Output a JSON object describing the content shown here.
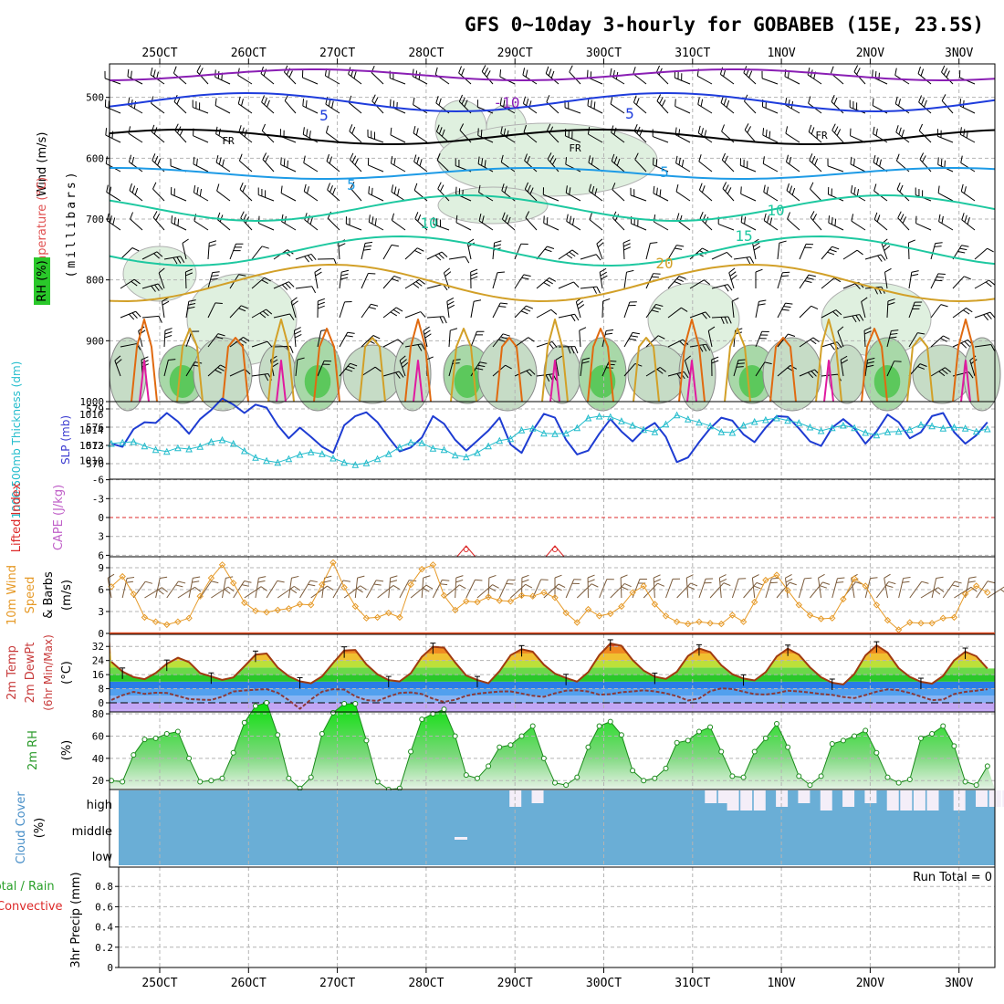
{
  "chart_data": {
    "type": "meteogram",
    "title": "GFS 0~10day 3-hourly for GOBABEB (15E, 23.5S)",
    "time_labels": [
      "25OCT",
      "26OCT",
      "27OCT",
      "28OCT",
      "29OCT",
      "30OCT",
      "31OCT",
      "1NOV",
      "2NOV",
      "3NOV"
    ],
    "colors": {
      "grid": "#b4b4b4",
      "axis": "#000000",
      "temp_500": "#8a1fb4",
      "temp_lo": "#1e3cdc",
      "temp_fr": "#000000",
      "temp_5": "#1e9be6",
      "temp_10": "#1ec8a0",
      "temp_20": "#d2a028",
      "temp_hot": "#e06a10",
      "temp_max": "#e01aa0",
      "slp": "#1e3cd2",
      "thickness": "#22bccc",
      "li": "#dc2828",
      "wind10": "#e69a28",
      "cloud": "#6aaed6",
      "rh_fill": "#2ac82a"
    },
    "upper_panel": {
      "y_axis_label_1": "Wind (m/s)",
      "y_axis_label_2": "Temperature (°C)",
      "y_axis_label_3": "RH (%)",
      "y_axis_label_4": "(millibars)",
      "y_ticks": [
        500,
        600,
        700,
        800,
        900,
        1000
      ],
      "contour_labels": [
        "-10",
        "5",
        "FR",
        "FR",
        "FR",
        "5",
        "5",
        "10",
        "10",
        "15",
        "20",
        "5"
      ]
    },
    "slp_panel": {
      "left_axis_label": "1000-500mb Thickness (dm)",
      "right_axis_label": "SLP (mb)",
      "left_ticks": [
        579,
        576,
        573,
        570
      ],
      "right_ticks": [
        1016,
        1014,
        1012,
        1010
      ],
      "series": [
        {
          "name": "SLP",
          "units": "mb",
          "values": [
            1012.2,
            1011.8,
            1014.1,
            1015.0,
            1014.9,
            1016.2,
            1015.1,
            1013.5,
            1015.4,
            1016.6,
            1018.1,
            1017.3,
            1016.2,
            1017.3,
            1016.9,
            1014.6,
            1012.9,
            1014.3,
            1013.1,
            1011.8,
            1011.0,
            1014.6,
            1015.8,
            1016.3,
            1015.0,
            1013.0,
            1011.2,
            1011.7,
            1013.0,
            1015.8,
            1014.8,
            1012.7,
            1011.3,
            1012.6,
            1013.9,
            1015.6,
            1012.1,
            1011.0,
            1013.9,
            1016.1,
            1015.6,
            1012.7,
            1010.8,
            1011.3,
            1013.5,
            1015.4,
            1013.8,
            1012.5,
            1014.0,
            1014.9,
            1013.1,
            1009.8,
            1010.4,
            1012.4,
            1014.2,
            1015.6,
            1015.2,
            1013.4,
            1012.4,
            1014.3,
            1015.8,
            1015.7,
            1014.2,
            1012.5,
            1011.9,
            1014.3,
            1015.4,
            1014.2,
            1012.2,
            1013.8,
            1016.0,
            1015.0,
            1012.9,
            1013.7,
            1015.8,
            1016.2,
            1013.7,
            1012.2,
            1013.3,
            1015.0
          ]
        },
        {
          "name": "1000-500mb thickness",
          "units": "dm",
          "values": [
            573.3,
            573.5,
            573.6,
            572.9,
            572.3,
            572.0,
            572.6,
            572.4,
            572.8,
            573.6,
            573.9,
            573.3,
            572.1,
            571.0,
            570.5,
            570.2,
            570.8,
            571.5,
            571.9,
            571.6,
            570.9,
            570.2,
            569.8,
            570.1,
            570.8,
            571.6,
            572.7,
            573.5,
            573.4,
            572.5,
            572.3,
            571.4,
            571.1,
            571.8,
            572.9,
            573.8,
            574.1,
            575.5,
            575.8,
            575.0,
            574.9,
            575.0,
            575.9,
            577.5,
            577.8,
            577.7,
            577.0,
            576.3,
            575.6,
            575.2,
            576.5,
            578.0,
            577.3,
            576.8,
            576.2,
            575.2,
            575.1,
            576.3,
            576.9,
            577.2,
            577.5,
            577.1,
            576.7,
            576.0,
            575.4,
            575.9,
            576.3,
            575.9,
            575.1,
            574.7,
            575.2,
            575.3,
            575.6,
            576.4,
            576.2,
            575.8,
            576.0,
            575.8,
            575.3,
            575.7
          ]
        }
      ]
    },
    "li_panel": {
      "left_axis_label_1": "Lifted Index",
      "left_axis_label_2": "CAPE (J/kg)",
      "ticks": [
        -6,
        -3,
        0,
        3,
        6
      ],
      "cape_points": [
        {
          "x": 28.45,
          "value": 0
        },
        {
          "x": 29.45,
          "value": 0
        }
      ]
    },
    "wind10_panel": {
      "left_axis_label_1": "10m Wind",
      "left_axis_label_2": "Speed",
      "left_axis_label_3": "& Barbs",
      "units_label": "(m/s)",
      "ticks": [
        0,
        3,
        6,
        9
      ],
      "values": [
        6.4,
        7.8,
        5.4,
        2.2,
        1.6,
        1.2,
        1.6,
        2.1,
        5.1,
        7.6,
        9.4,
        6.9,
        4.2,
        3.1,
        2.9,
        3.2,
        3.4,
        4.0,
        3.9,
        6.7,
        9.7,
        6.3,
        3.7,
        2.1,
        2.2,
        2.8,
        2.2,
        6.7,
        8.8,
        9.4,
        5.2,
        3.2,
        4.4,
        4.3,
        5.0,
        4.5,
        4.4,
        5.2,
        5.1,
        5.6,
        4.9,
        2.8,
        1.5,
        3.3,
        2.4,
        2.7,
        3.7,
        5.6,
        6.5,
        4.0,
        2.4,
        1.6,
        1.3,
        1.6,
        1.4,
        1.3,
        2.5,
        1.6,
        4.3,
        7.3,
        8.0,
        5.9,
        3.9,
        2.5,
        2.0,
        2.1,
        4.7,
        7.5,
        6.5,
        3.9,
        1.8,
        0.5,
        1.5,
        1.4,
        1.4,
        2.1,
        2.2,
        5.4,
        6.5,
        5.6
      ]
    },
    "temp_panel": {
      "left_axis_label_1": "2m Temp",
      "left_axis_label_2": "2m DewPt",
      "left_axis_label_3": "(6hr Min/Max)",
      "units_label": "(°C)",
      "ticks": [
        0,
        8,
        16,
        24,
        32
      ],
      "temperature": [
        23.3,
        17.7,
        14.6,
        13.4,
        16.9,
        22.2,
        25.6,
        23.1,
        16.9,
        14.9,
        13.0,
        14.4,
        20.7,
        27.3,
        28.0,
        20.0,
        15.1,
        12.2,
        11.1,
        15.0,
        22.6,
        29.7,
        30.0,
        21.8,
        16.1,
        12.9,
        12.1,
        16.8,
        26.1,
        31.8,
        31.3,
        22.9,
        15.5,
        12.9,
        11.1,
        18.0,
        27.0,
        30.4,
        29.0,
        21.6,
        16.6,
        14.1,
        12.0,
        17.4,
        27.1,
        33.7,
        32.4,
        24.3,
        18.3,
        14.8,
        13.6,
        17.6,
        26.6,
        30.9,
        28.8,
        21.3,
        16.2,
        13.8,
        12.7,
        17.4,
        26.3,
        30.7,
        27.3,
        20.1,
        14.5,
        11.4,
        10.4,
        16.4,
        26.9,
        32.6,
        28.5,
        19.7,
        14.7,
        11.9,
        10.9,
        15.3,
        24.1,
        29.0,
        26.4,
        19.5
      ],
      "dewpoint": [
        1.6,
        4.3,
        6.2,
        5.1,
        5.7,
        5.6,
        3.9,
        2.1,
        1.8,
        1.6,
        3.5,
        6.4,
        7.0,
        7.4,
        7.7,
        5.7,
        1.5,
        -3.4,
        1.9,
        6.3,
        7.7,
        7.5,
        3.7,
        1.5,
        1.1,
        3.6,
        5.6,
        5.9,
        5.0,
        2.3,
        0.5,
        1.7,
        4.0,
        5.2,
        5.8,
        6.4,
        6.5,
        5.3,
        4.0,
        3.4,
        5.4,
        6.9,
        7.1,
        6.4,
        4.6,
        4.9,
        6.0,
        6.5,
        7.1,
        6.5,
        5.4,
        3.8,
        1.3,
        2.5,
        6.6,
        8.2,
        7.8,
        6.3,
        4.9,
        4.7,
        5.5,
        6.9,
        6.5,
        5.8,
        5.0,
        4.5,
        3.3,
        2.7,
        4.4,
        6.3,
        7.6,
        7.1,
        5.6,
        3.6,
        1.5,
        1.8,
        5.0,
        6.2,
        6.9,
        7.7
      ]
    },
    "rh_panel": {
      "left_axis_label": "2m RH",
      "units_label": "(%)",
      "ticks": [
        20,
        40,
        60,
        80
      ],
      "values": [
        20,
        19,
        43,
        57,
        58,
        62,
        64,
        40,
        19,
        20,
        22,
        45,
        72,
        87,
        90,
        61,
        22,
        13,
        23,
        62,
        81,
        89,
        89,
        56,
        19,
        12,
        13,
        46,
        75,
        80,
        84,
        60,
        25,
        22,
        33,
        50,
        52,
        60,
        69,
        40,
        18,
        16,
        23,
        50,
        69,
        73,
        61,
        29,
        20,
        22,
        31,
        54,
        56,
        64,
        68,
        46,
        24,
        23,
        46,
        58,
        71,
        50,
        24,
        16,
        24,
        53,
        56,
        60,
        65,
        45,
        23,
        18,
        21,
        58,
        62,
        69,
        51,
        19,
        16,
        33
      ]
    },
    "cloud_panel": {
      "left_axis_label_1": "Cloud Cover",
      "left_axis_label_2": "(%)",
      "layers": [
        "high",
        "middle",
        "low"
      ],
      "clear_high_x": [
        29.0,
        29.25,
        31.2,
        31.35,
        31.45,
        31.6,
        31.75,
        32.0,
        32.25,
        32.5,
        32.75,
        33.0,
        33.25,
        33.4,
        33.55,
        33.7,
        34.0,
        34.25,
        34.4,
        34.55,
        34.7,
        34.85,
        35.2,
        35.45,
        35.7,
        35.95
      ]
    },
    "precip_panel": {
      "left_axis_label_1": "Total / Rain",
      "left_axis_label_2": "Convective",
      "left_axis_label_3": "3hr Precip (mm)",
      "ticks": [
        0,
        0.2,
        0.4,
        0.6,
        0.8
      ],
      "run_total_label": "Run Total = 0",
      "run_total_value": 0
    }
  }
}
